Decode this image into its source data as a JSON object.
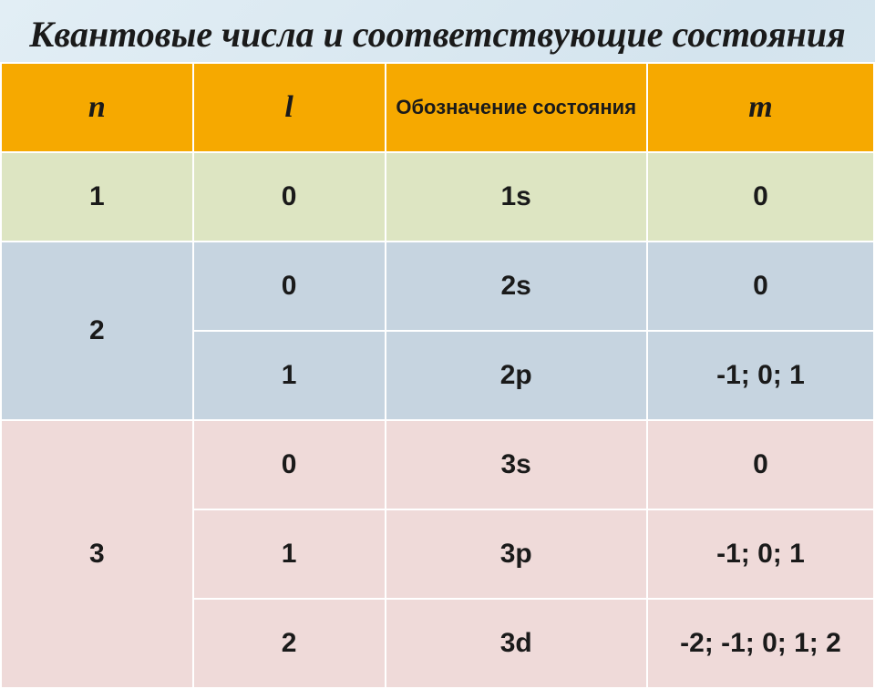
{
  "title": "Квантовые числа и соответствующие состояния",
  "title_fontsize": 40,
  "headers": {
    "n": "n",
    "l": "l",
    "state": "Обозначение состояния",
    "m": "m"
  },
  "rows": [
    {
      "n": "1",
      "l": "0",
      "state": "1s",
      "m": "0"
    },
    {
      "n": "2",
      "l": "0",
      "state": "2s",
      "m": "0"
    },
    {
      "n": "2",
      "l": "1",
      "state": "2p",
      "m": "-1; 0; 1"
    },
    {
      "n": "3",
      "l": "0",
      "state": "3s",
      "m": "0"
    },
    {
      "n": "3",
      "l": "1",
      "state": "3p",
      "m": "-1; 0; 1"
    },
    {
      "n": "3",
      "l": "2",
      "state": "3d",
      "m": "-2; -1; 0; 1; 2"
    }
  ],
  "n_rowspans": {
    "1": 1,
    "2": 2,
    "3": 3
  },
  "colors": {
    "header_bg": "#f6a900",
    "group1_bg": "#dde5c2",
    "group2_bg": "#c6d4e0",
    "group3_bg": "#efdad9",
    "border": "#ffffff",
    "text": "#1a1a1a"
  },
  "fonts": {
    "header_serif_size": 34,
    "header_sans_size": 22,
    "cell_size": 30
  },
  "col_widths_pct": [
    22,
    22,
    30,
    26
  ]
}
